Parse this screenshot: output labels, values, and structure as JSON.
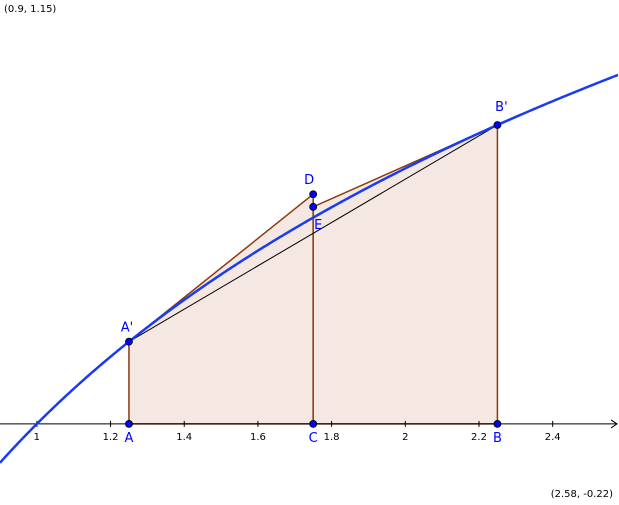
{
  "view": {
    "top_left_label": "(0.9, 1.15)",
    "bottom_right_label": "(2.58, -0.22)",
    "xmin": 0.9,
    "xmax": 2.58,
    "ymin": -0.22,
    "ymax": 1.15
  },
  "x_ticks": [
    {
      "value": 1,
      "label": "1"
    },
    {
      "value": 1.2,
      "label": "1.2"
    },
    {
      "value": 1.4,
      "label": "1.4"
    },
    {
      "value": 1.6,
      "label": "1.6"
    },
    {
      "value": 1.8,
      "label": "1.8"
    },
    {
      "value": 2,
      "label": "2"
    },
    {
      "value": 2.2,
      "label": "2.2"
    },
    {
      "value": 2.4,
      "label": "2.4"
    }
  ],
  "function": "ln(x)",
  "points": [
    {
      "id": "A",
      "label": "A",
      "x": 1.25,
      "y": 0
    },
    {
      "id": "C",
      "label": "C",
      "x": 1.75,
      "y": 0
    },
    {
      "id": "B",
      "label": "B",
      "x": 2.25,
      "y": 0
    },
    {
      "id": "Ap",
      "label": "A'",
      "x": 1.25,
      "y": 0.2231
    },
    {
      "id": "D",
      "label": "D",
      "x": 1.75,
      "y": 0.6231
    },
    {
      "id": "E",
      "label": "E",
      "x": 1.75,
      "y": 0.5889
    },
    {
      "id": "Bp",
      "label": "B'",
      "x": 2.25,
      "y": 0.8109
    }
  ],
  "colors": {
    "curve": "#1a3cf0",
    "point": "#0000ff",
    "polygon_edge": "#8b3a0f",
    "polygon_fill": "#f5e8e3",
    "chord": "#000000"
  }
}
